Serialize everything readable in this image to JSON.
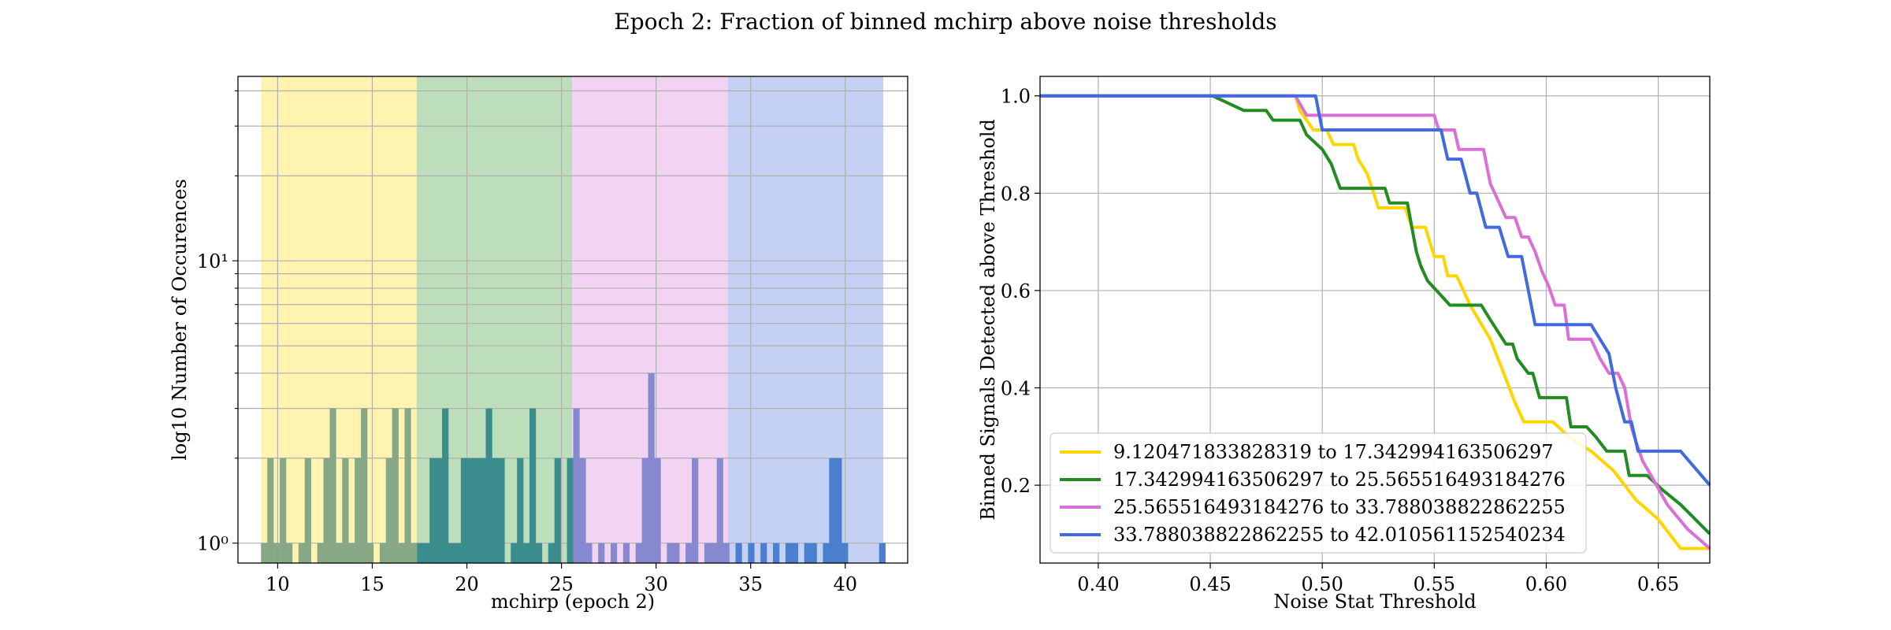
{
  "figure": {
    "title": "Epoch 2: Fraction of binned mchirp above noise thresholds"
  },
  "chart_data": [
    {
      "type": "bar",
      "subtype": "histogram",
      "title": "",
      "xlabel": "mchirp (epoch 2)",
      "ylabel": "log10 Number of Occurences",
      "yscale": "log",
      "xlim": [
        7.9,
        43.3
      ],
      "ylim": [
        0.85,
        45
      ],
      "xticks": [
        10,
        15,
        20,
        25,
        30,
        35,
        40
      ],
      "yticks": [
        1,
        10
      ],
      "ytick_labels": [
        "10⁰",
        "10¹"
      ],
      "grid": true,
      "bands": [
        {
          "from": 9.120471833828319,
          "to": 17.342994163506297,
          "color": "#fff3b0"
        },
        {
          "from": 17.342994163506297,
          "to": 25.565516493184276,
          "color": "#bddebb"
        },
        {
          "from": 25.565516493184276,
          "to": 33.788038822862255,
          "color": "#f2d3f2"
        },
        {
          "from": 33.788038822862255,
          "to": 42.010561152540234,
          "color": "#c4d1f5"
        }
      ],
      "bar_width": 0.329,
      "bars": [
        [
          9.12,
          1
        ],
        [
          9.45,
          2
        ],
        [
          9.78,
          1
        ],
        [
          10.11,
          2
        ],
        [
          10.44,
          1
        ],
        [
          11.1,
          1
        ],
        [
          11.43,
          2
        ],
        [
          12.09,
          1
        ],
        [
          12.42,
          2
        ],
        [
          12.75,
          3
        ],
        [
          13.08,
          1
        ],
        [
          13.41,
          2
        ],
        [
          13.74,
          1
        ],
        [
          14.07,
          2
        ],
        [
          14.4,
          3
        ],
        [
          14.73,
          1
        ],
        [
          15.39,
          1
        ],
        [
          15.72,
          2
        ],
        [
          16.05,
          3
        ],
        [
          16.38,
          1
        ],
        [
          16.71,
          3
        ],
        [
          17.04,
          1
        ],
        [
          17.37,
          1
        ],
        [
          17.7,
          1
        ],
        [
          18.03,
          2
        ],
        [
          18.36,
          2
        ],
        [
          18.69,
          3
        ],
        [
          19.02,
          1
        ],
        [
          19.35,
          1
        ],
        [
          19.68,
          2
        ],
        [
          20.01,
          2
        ],
        [
          20.34,
          2
        ],
        [
          20.67,
          2
        ],
        [
          21.0,
          3
        ],
        [
          21.33,
          2
        ],
        [
          21.66,
          2
        ],
        [
          22.32,
          1
        ],
        [
          22.65,
          2
        ],
        [
          22.98,
          1
        ],
        [
          23.31,
          3
        ],
        [
          23.64,
          1
        ],
        [
          24.3,
          1
        ],
        [
          24.63,
          2
        ],
        [
          25.29,
          2
        ],
        [
          25.62,
          3
        ],
        [
          25.95,
          2
        ],
        [
          26.28,
          1
        ],
        [
          26.94,
          1
        ],
        [
          27.6,
          1
        ],
        [
          28.26,
          1
        ],
        [
          28.92,
          1
        ],
        [
          29.25,
          2
        ],
        [
          29.58,
          4
        ],
        [
          29.91,
          2
        ],
        [
          30.57,
          1
        ],
        [
          30.9,
          1
        ],
        [
          31.56,
          1
        ],
        [
          31.89,
          2
        ],
        [
          32.55,
          1
        ],
        [
          32.88,
          1
        ],
        [
          33.21,
          2
        ],
        [
          33.54,
          1
        ],
        [
          34.2,
          1
        ],
        [
          34.86,
          1
        ],
        [
          35.52,
          1
        ],
        [
          36.18,
          1
        ],
        [
          36.84,
          1
        ],
        [
          37.17,
          1
        ],
        [
          37.83,
          1
        ],
        [
          38.16,
          1
        ],
        [
          38.82,
          1
        ],
        [
          39.15,
          2
        ],
        [
          39.48,
          2
        ],
        [
          39.81,
          1
        ],
        [
          41.79,
          1
        ]
      ]
    },
    {
      "type": "line",
      "title": "",
      "xlabel": "Noise Stat Threshold",
      "ylabel": "Binned Signals Detected above Threshold",
      "xlim": [
        0.374,
        0.673
      ],
      "ylim": [
        0.04,
        1.04
      ],
      "xticks": [
        0.4,
        0.45,
        0.5,
        0.55,
        0.6,
        0.65
      ],
      "yticks": [
        0.2,
        0.4,
        0.6,
        0.8,
        1.0
      ],
      "grid": true,
      "legend_position": "lower-left",
      "series": [
        {
          "name": "9.120471833828319 to 17.342994163506297",
          "color": "#ffd500",
          "points": [
            [
              0.374,
              1.0
            ],
            [
              0.488,
              1.0
            ],
            [
              0.49,
              0.97
            ],
            [
              0.493,
              0.95
            ],
            [
              0.496,
              0.93
            ],
            [
              0.502,
              0.93
            ],
            [
              0.505,
              0.9
            ],
            [
              0.514,
              0.9
            ],
            [
              0.516,
              0.87
            ],
            [
              0.52,
              0.84
            ],
            [
              0.523,
              0.8
            ],
            [
              0.525,
              0.77
            ],
            [
              0.537,
              0.77
            ],
            [
              0.54,
              0.73
            ],
            [
              0.546,
              0.73
            ],
            [
              0.548,
              0.7
            ],
            [
              0.55,
              0.67
            ],
            [
              0.554,
              0.67
            ],
            [
              0.556,
              0.63
            ],
            [
              0.56,
              0.63
            ],
            [
              0.566,
              0.57
            ],
            [
              0.575,
              0.5
            ],
            [
              0.581,
              0.43
            ],
            [
              0.586,
              0.37
            ],
            [
              0.59,
              0.33
            ],
            [
              0.603,
              0.33
            ],
            [
              0.61,
              0.3
            ],
            [
              0.62,
              0.27
            ],
            [
              0.63,
              0.23
            ],
            [
              0.64,
              0.17
            ],
            [
              0.65,
              0.13
            ],
            [
              0.66,
              0.07
            ],
            [
              0.673,
              0.07
            ]
          ]
        },
        {
          "name": "17.342994163506297 to 25.565516493184276",
          "color": "#228b22",
          "points": [
            [
              0.374,
              1.0
            ],
            [
              0.451,
              1.0
            ],
            [
              0.465,
              0.97
            ],
            [
              0.475,
              0.97
            ],
            [
              0.478,
              0.95
            ],
            [
              0.49,
              0.95
            ],
            [
              0.493,
              0.92
            ],
            [
              0.5,
              0.89
            ],
            [
              0.504,
              0.86
            ],
            [
              0.508,
              0.81
            ],
            [
              0.528,
              0.81
            ],
            [
              0.53,
              0.78
            ],
            [
              0.538,
              0.78
            ],
            [
              0.54,
              0.73
            ],
            [
              0.542,
              0.68
            ],
            [
              0.544,
              0.65
            ],
            [
              0.547,
              0.62
            ],
            [
              0.551,
              0.6
            ],
            [
              0.557,
              0.57
            ],
            [
              0.571,
              0.57
            ],
            [
              0.575,
              0.54
            ],
            [
              0.582,
              0.49
            ],
            [
              0.585,
              0.49
            ],
            [
              0.587,
              0.46
            ],
            [
              0.592,
              0.43
            ],
            [
              0.594,
              0.43
            ],
            [
              0.597,
              0.38
            ],
            [
              0.609,
              0.38
            ],
            [
              0.611,
              0.32
            ],
            [
              0.618,
              0.32
            ],
            [
              0.622,
              0.3
            ],
            [
              0.627,
              0.27
            ],
            [
              0.635,
              0.27
            ],
            [
              0.637,
              0.22
            ],
            [
              0.645,
              0.22
            ],
            [
              0.652,
              0.19
            ],
            [
              0.66,
              0.16
            ],
            [
              0.673,
              0.1
            ]
          ]
        },
        {
          "name": "25.565516493184276 to 33.788038822862255",
          "color": "#da70d6",
          "points": [
            [
              0.374,
              1.0
            ],
            [
              0.488,
              1.0
            ],
            [
              0.493,
              0.96
            ],
            [
              0.55,
              0.96
            ],
            [
              0.552,
              0.93
            ],
            [
              0.559,
              0.93
            ],
            [
              0.561,
              0.89
            ],
            [
              0.572,
              0.89
            ],
            [
              0.575,
              0.82
            ],
            [
              0.578,
              0.79
            ],
            [
              0.582,
              0.75
            ],
            [
              0.586,
              0.75
            ],
            [
              0.589,
              0.71
            ],
            [
              0.592,
              0.71
            ],
            [
              0.595,
              0.68
            ],
            [
              0.598,
              0.64
            ],
            [
              0.601,
              0.61
            ],
            [
              0.604,
              0.57
            ],
            [
              0.608,
              0.57
            ],
            [
              0.61,
              0.5
            ],
            [
              0.62,
              0.5
            ],
            [
              0.624,
              0.46
            ],
            [
              0.628,
              0.43
            ],
            [
              0.632,
              0.43
            ],
            [
              0.635,
              0.4
            ],
            [
              0.638,
              0.32
            ],
            [
              0.64,
              0.29
            ],
            [
              0.643,
              0.25
            ],
            [
              0.648,
              0.21
            ],
            [
              0.654,
              0.16
            ],
            [
              0.663,
              0.11
            ],
            [
              0.673,
              0.07
            ]
          ]
        },
        {
          "name": "33.788038822862255 to 42.010561152540234",
          "color": "#4169e1",
          "points": [
            [
              0.374,
              1.0
            ],
            [
              0.497,
              1.0
            ],
            [
              0.5,
              0.93
            ],
            [
              0.553,
              0.93
            ],
            [
              0.556,
              0.87
            ],
            [
              0.562,
              0.87
            ],
            [
              0.566,
              0.8
            ],
            [
              0.569,
              0.8
            ],
            [
              0.573,
              0.73
            ],
            [
              0.579,
              0.73
            ],
            [
              0.583,
              0.67
            ],
            [
              0.589,
              0.67
            ],
            [
              0.595,
              0.53
            ],
            [
              0.62,
              0.53
            ],
            [
              0.628,
              0.47
            ],
            [
              0.631,
              0.4
            ],
            [
              0.635,
              0.33
            ],
            [
              0.638,
              0.33
            ],
            [
              0.641,
              0.27
            ],
            [
              0.66,
              0.27
            ],
            [
              0.673,
              0.2
            ]
          ]
        }
      ]
    }
  ]
}
